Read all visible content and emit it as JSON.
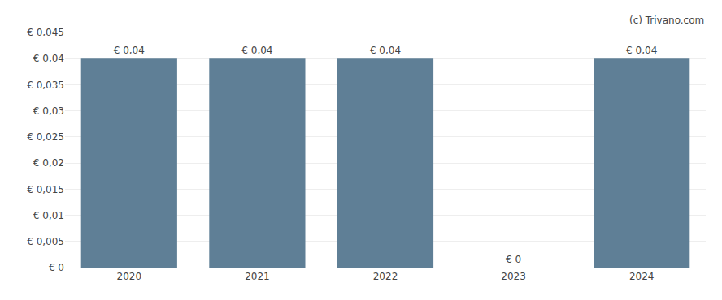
{
  "chart_data": {
    "type": "bar",
    "x": [
      2020,
      2021,
      2022,
      2023,
      2024
    ],
    "values": [
      0.04,
      0.04,
      0.04,
      0.0,
      0.04
    ],
    "value_labels": [
      "€ 0,04",
      "€ 0,04",
      "€ 0,04",
      "€ 0",
      "€ 0,04"
    ],
    "data_labels": true,
    "color": "#5f7f96",
    "xlim": [
      2019.5,
      2024.5
    ],
    "xticks": [
      2020,
      2021,
      2022,
      2023,
      2024
    ],
    "ylim": [
      0,
      0.045
    ],
    "yticks": [
      {
        "value": 0,
        "label": "€ 0"
      },
      {
        "value": 0.005,
        "label": "€ 0,005"
      },
      {
        "value": 0.01,
        "label": "€ 0,01"
      },
      {
        "value": 0.015,
        "label": "€ 0,015"
      },
      {
        "value": 0.02,
        "label": "€ 0,02"
      },
      {
        "value": 0.025,
        "label": "€ 0,025"
      },
      {
        "value": 0.03,
        "label": "€ 0,03"
      },
      {
        "value": 0.035,
        "label": "€ 0,035"
      },
      {
        "value": 0.04,
        "label": "€ 0,04"
      },
      {
        "value": 0.045,
        "label": "€ 0,045"
      }
    ],
    "grid": true,
    "annotations": [
      "(c) Trivano.com"
    ]
  }
}
